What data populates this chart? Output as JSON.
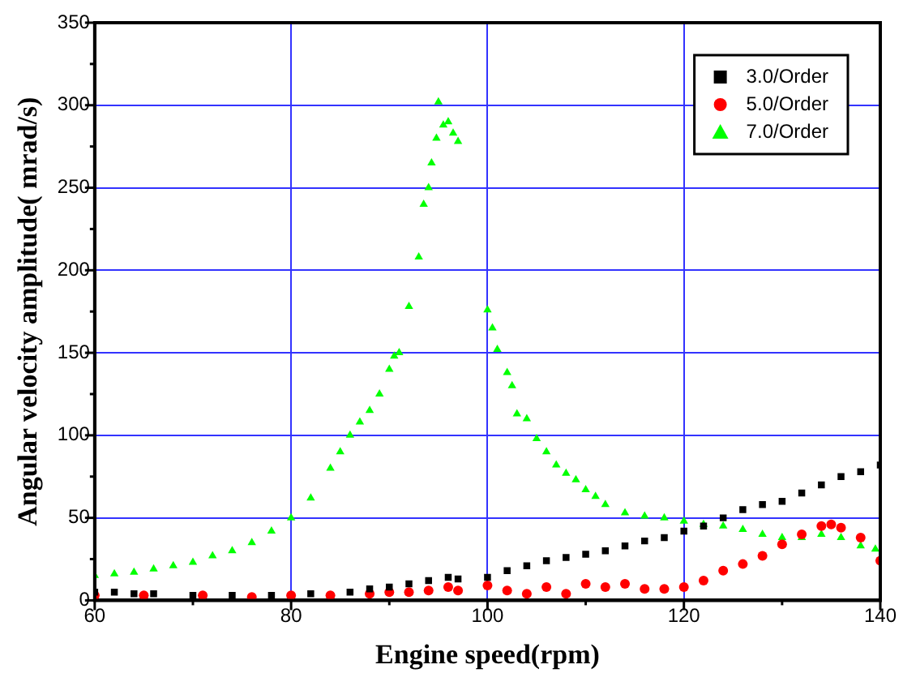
{
  "chart_data": {
    "type": "scatter",
    "xlabel": "Engine speed(rpm)",
    "ylabel": "Angular velocity amplitude( mrad/s)",
    "xlim": [
      60,
      140
    ],
    "xticks": [
      60,
      80,
      100,
      120,
      140
    ],
    "ylim": [
      0,
      350
    ],
    "yticks": [
      0,
      50,
      100,
      150,
      200,
      250,
      300,
      350
    ],
    "grid": true,
    "legend": "top right",
    "series": [
      {
        "name": "3.0/Order",
        "color": "#000000",
        "marker": "square",
        "x": [
          60,
          62,
          64,
          66,
          70,
          74,
          78,
          82,
          86,
          88,
          90,
          92,
          94,
          96,
          97,
          100,
          102,
          104,
          106,
          108,
          110,
          112,
          114,
          116,
          118,
          120,
          122,
          124,
          126,
          128,
          130,
          132,
          134,
          136,
          138,
          140
        ],
        "values": [
          5,
          5,
          4,
          4,
          3,
          3,
          3,
          4,
          5,
          7,
          8,
          10,
          12,
          14,
          13,
          14,
          18,
          21,
          24,
          26,
          28,
          30,
          33,
          36,
          38,
          42,
          45,
          50,
          55,
          58,
          60,
          65,
          70,
          75,
          78,
          82
        ]
      },
      {
        "name": "5.0/Order",
        "color": "#ff0000",
        "marker": "circle",
        "x": [
          60,
          65,
          71,
          76,
          80,
          84,
          88,
          90,
          92,
          94,
          96,
          97,
          100,
          102,
          104,
          106,
          108,
          110,
          112,
          114,
          116,
          118,
          120,
          122,
          124,
          126,
          128,
          130,
          132,
          134,
          135,
          136,
          138,
          140
        ],
        "values": [
          3,
          3,
          3,
          2,
          3,
          3,
          4,
          5,
          5,
          6,
          8,
          6,
          9,
          6,
          4,
          8,
          4,
          10,
          8,
          10,
          7,
          7,
          8,
          12,
          18,
          22,
          27,
          34,
          40,
          45,
          46,
          44,
          38,
          24
        ]
      },
      {
        "name": "7.0/Order",
        "color": "#00ff00",
        "marker": "triangle",
        "x": [
          60,
          62,
          64,
          66,
          68,
          70,
          72,
          74,
          76,
          78,
          80,
          82,
          84,
          85,
          86,
          87,
          88,
          89,
          90,
          90.5,
          91,
          92,
          93,
          93.5,
          94,
          94.3,
          94.8,
          95,
          95.5,
          96,
          96.5,
          97,
          100,
          100.5,
          101,
          102,
          102.5,
          103,
          104,
          105,
          106,
          107,
          108,
          109,
          110,
          111,
          112,
          114,
          116,
          118,
          120,
          122,
          124,
          126,
          128,
          130,
          132,
          134,
          136,
          138,
          139.5
        ],
        "values": [
          15,
          16,
          17,
          19,
          21,
          23,
          27,
          30,
          35,
          42,
          50,
          62,
          80,
          90,
          100,
          108,
          115,
          125,
          140,
          148,
          150,
          178,
          208,
          240,
          250,
          265,
          280,
          302,
          288,
          290,
          283,
          278,
          176,
          165,
          152,
          138,
          130,
          113,
          110,
          98,
          90,
          82,
          77,
          73,
          67,
          63,
          58,
          53,
          51,
          50,
          48,
          46,
          45,
          43,
          40,
          38,
          38,
          40,
          38,
          33,
          31
        ]
      }
    ]
  }
}
